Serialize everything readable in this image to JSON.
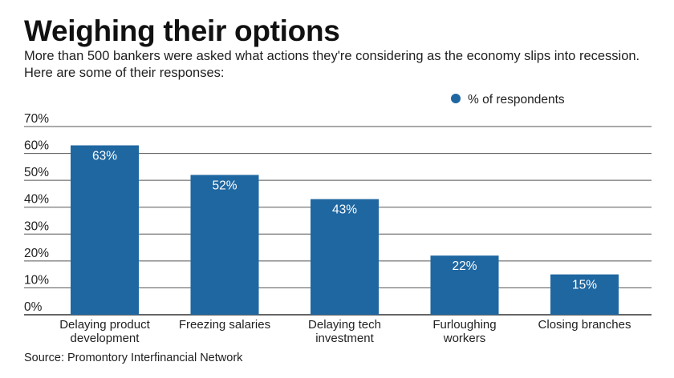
{
  "title": "Weighing their options",
  "subtitle": "More than 500 bankers were asked what actions they're considering as the economy slips into recession. Here are some of their responses:",
  "source": "Source: Promontory Interfinancial Network",
  "colors": {
    "bar": "#1f67a1",
    "grid": "#555555",
    "axis": "#333333"
  },
  "chart_data": {
    "type": "bar",
    "categories": [
      [
        "Delaying product",
        "development"
      ],
      [
        "Freezing salaries"
      ],
      [
        "Delaying tech",
        "investment"
      ],
      [
        "Furloughing",
        "workers"
      ],
      [
        "Closing branches"
      ]
    ],
    "series": [
      {
        "name": "% of respondents",
        "values": [
          63,
          52,
          43,
          22,
          15
        ]
      }
    ],
    "data_labels": [
      "63%",
      "52%",
      "43%",
      "22%",
      "15%"
    ],
    "yticks": [
      "0%",
      "10%",
      "20%",
      "30%",
      "40%",
      "50%",
      "60%",
      "70%"
    ],
    "ylim": [
      0,
      70
    ],
    "grid": true,
    "legend_position": "top-right"
  }
}
